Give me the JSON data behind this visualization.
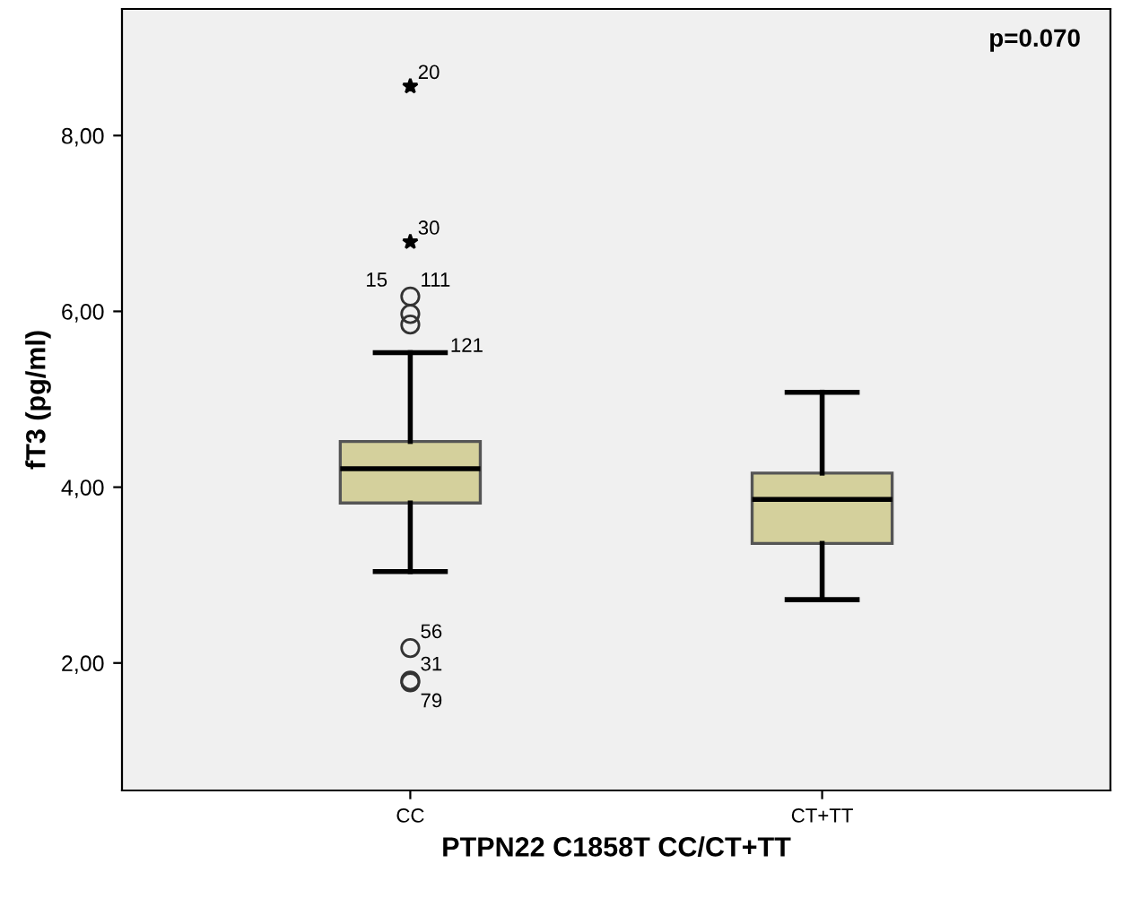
{
  "chart_data": {
    "type": "box",
    "xlabel": "PTPN22 C1858T CC/CT+TT",
    "ylabel": "fT3 (pg/ml)",
    "categories": [
      "CC",
      "CT+TT"
    ],
    "color": "#d4d09c",
    "boxes": [
      {
        "low": 3.04,
        "q1": 3.82,
        "median": 4.21,
        "q3": 4.52,
        "high": 5.53,
        "outliers": [
          8.56,
          6.79,
          6.17,
          5.97,
          5.85,
          2.17,
          1.8,
          1.78
        ]
      },
      {
        "low": 2.72,
        "q1": 3.36,
        "median": 3.86,
        "q3": 4.16,
        "high": 5.08
      }
    ],
    "ylim": [
      0.55,
      9.44
    ],
    "yticks": [
      {
        "value": 2,
        "label": "2,00"
      },
      {
        "value": 4,
        "label": "4,00"
      },
      {
        "value": 6,
        "label": "6,00"
      },
      {
        "value": 8,
        "label": "8,00"
      }
    ],
    "grid": false,
    "annotations": [
      "p=0.070",
      "20",
      "30",
      "15",
      "111",
      "121",
      "56",
      "31",
      "79"
    ]
  }
}
